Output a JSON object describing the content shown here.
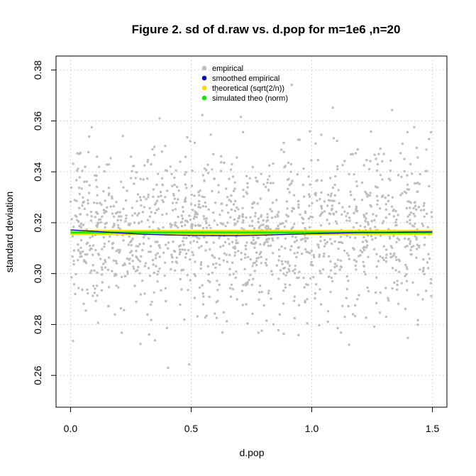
{
  "chart_data": {
    "type": "scatter",
    "title": "Figure 2. sd of d.raw vs. d.pop for m=1e6 ,n=20",
    "xlabel": "d.pop",
    "ylabel": "standard deviation",
    "xlim": [
      -0.06,
      1.56
    ],
    "ylim": [
      0.2475,
      0.3855
    ],
    "xticks": [
      0.0,
      0.5,
      1.0,
      1.5
    ],
    "xtick_labels": [
      "0.0",
      "0.5",
      "1.0",
      "1.5"
    ],
    "yticks": [
      0.26,
      0.28,
      0.3,
      0.32,
      0.34,
      0.36,
      0.38
    ],
    "ytick_labels": [
      "0.26",
      "0.28",
      "0.30",
      "0.32",
      "0.34",
      "0.36",
      "0.38"
    ],
    "grid": true,
    "legend_position": "top-center",
    "scatter": {
      "name": "empirical",
      "color": "#bebebe",
      "n_points": 1500,
      "x_range": [
        0.0,
        1.5
      ],
      "mean": 0.3162,
      "sd": 0.0165,
      "y_range": [
        0.2535,
        0.3815
      ]
    },
    "series": [
      {
        "name": "smoothed empirical",
        "color": "#0000cd",
        "x": [
          0.0,
          0.1,
          0.2,
          0.3,
          0.4,
          0.5,
          0.6,
          0.7,
          0.8,
          0.9,
          1.0,
          1.1,
          1.2,
          1.3,
          1.4,
          1.5
        ],
        "y": [
          0.3172,
          0.3166,
          0.316,
          0.3155,
          0.3152,
          0.315,
          0.3149,
          0.3149,
          0.3151,
          0.3154,
          0.3157,
          0.3159,
          0.3161,
          0.3162,
          0.3163,
          0.3164
        ]
      },
      {
        "name": "theoretical (sqrt(2/n))",
        "color": "#ffd700",
        "x": [
          0.0,
          1.5
        ],
        "y": [
          0.3162,
          0.3162
        ]
      },
      {
        "name": "simulated theo (norm)",
        "color": "#00ee00",
        "x": [
          0.0,
          0.5,
          1.0,
          1.5
        ],
        "y": [
          0.3162,
          0.3162,
          0.3162,
          0.3162
        ]
      }
    ]
  }
}
